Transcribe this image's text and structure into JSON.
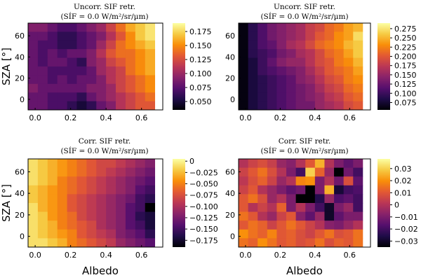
{
  "chart_data": [
    {
      "type": "heatmap",
      "title_line1": "Uncorr. SIF retr.",
      "title_line2": "(SÍF = 0.0 W/m²/sr/µm)",
      "xlabel": "",
      "ylabel": "SZA [°]",
      "x_ticks": [
        "0.0",
        "0.2",
        "0.4",
        "0.6"
      ],
      "y_ticks": [
        "0",
        "20",
        "40",
        "60"
      ],
      "xlim": [
        -0.04,
        0.72
      ],
      "ylim": [
        -10,
        72
      ],
      "colorbar_ticks": [
        "0.050",
        "0.075",
        "0.100",
        "0.125",
        "0.150",
        "0.175"
      ],
      "clim": [
        0.035,
        0.19
      ],
      "colormap": "inferno",
      "values": [
        [
          0.09,
          0.09,
          0.08,
          0.07,
          0.07,
          0.08,
          0.09,
          0.1,
          0.12,
          0.14,
          0.16,
          0.17,
          0.18
        ],
        [
          0.08,
          0.08,
          0.07,
          0.06,
          0.06,
          0.07,
          0.08,
          0.09,
          0.11,
          0.13,
          0.15,
          0.17,
          0.18
        ],
        [
          0.08,
          0.07,
          0.07,
          0.06,
          0.06,
          0.07,
          0.08,
          0.1,
          0.12,
          0.14,
          0.15,
          0.16,
          0.17
        ],
        [
          0.08,
          0.07,
          0.08,
          0.07,
          0.08,
          0.08,
          0.09,
          0.11,
          0.13,
          0.14,
          0.14,
          0.15,
          0.16
        ],
        [
          0.08,
          0.07,
          0.08,
          0.08,
          0.07,
          0.06,
          0.09,
          0.1,
          0.12,
          0.13,
          0.14,
          0.15,
          0.16
        ],
        [
          0.08,
          0.08,
          0.07,
          0.07,
          0.07,
          0.07,
          0.08,
          0.1,
          0.11,
          0.12,
          0.14,
          0.15,
          0.16
        ],
        [
          0.08,
          0.08,
          0.07,
          0.08,
          0.07,
          0.08,
          0.08,
          0.09,
          0.11,
          0.12,
          0.13,
          0.14,
          0.15
        ],
        [
          0.09,
          0.08,
          0.08,
          0.08,
          0.08,
          0.08,
          0.09,
          0.09,
          0.1,
          0.12,
          0.13,
          0.14,
          0.15
        ],
        [
          0.08,
          0.08,
          0.07,
          0.07,
          0.07,
          0.06,
          0.08,
          0.09,
          0.1,
          0.11,
          0.12,
          0.13,
          0.14
        ],
        [
          0.08,
          0.08,
          0.07,
          0.07,
          0.06,
          0.05,
          0.06,
          0.08,
          0.09,
          0.11,
          0.12,
          0.13,
          0.13
        ]
      ]
    },
    {
      "type": "heatmap",
      "title_line1": "Uncorr. SIF retr.",
      "title_line2": "(SÍF = 0.0 W/m²/sr/µm)",
      "xlabel": "",
      "ylabel": "",
      "x_ticks": [
        "0.0",
        "0.2",
        "0.4",
        "0.6"
      ],
      "y_ticks": [
        "0",
        "20",
        "40",
        "60"
      ],
      "xlim": [
        -0.04,
        0.72
      ],
      "ylim": [
        -10,
        72
      ],
      "colorbar_ticks": [
        "0.075",
        "0.100",
        "0.125",
        "0.150",
        "0.175",
        "0.200",
        "0.225",
        "0.250",
        "0.275"
      ],
      "clim": [
        0.055,
        0.29
      ],
      "colormap": "inferno",
      "values": [
        [
          0.06,
          0.09,
          0.11,
          0.13,
          0.14,
          0.15,
          0.16,
          0.18,
          0.19,
          0.21,
          0.22,
          0.24,
          0.25
        ],
        [
          0.06,
          0.09,
          0.11,
          0.13,
          0.14,
          0.15,
          0.16,
          0.18,
          0.2,
          0.21,
          0.23,
          0.24,
          0.27
        ],
        [
          0.06,
          0.09,
          0.11,
          0.12,
          0.14,
          0.16,
          0.17,
          0.19,
          0.21,
          0.22,
          0.23,
          0.25,
          0.26
        ],
        [
          0.06,
          0.09,
          0.1,
          0.11,
          0.13,
          0.14,
          0.16,
          0.17,
          0.19,
          0.21,
          0.22,
          0.24,
          0.26
        ],
        [
          0.06,
          0.08,
          0.1,
          0.12,
          0.14,
          0.15,
          0.15,
          0.17,
          0.19,
          0.2,
          0.22,
          0.23,
          0.25
        ],
        [
          0.06,
          0.08,
          0.1,
          0.11,
          0.12,
          0.13,
          0.14,
          0.16,
          0.18,
          0.2,
          0.21,
          0.22,
          0.24
        ],
        [
          0.06,
          0.08,
          0.09,
          0.1,
          0.11,
          0.12,
          0.14,
          0.15,
          0.17,
          0.19,
          0.2,
          0.22,
          0.23
        ],
        [
          0.06,
          0.08,
          0.09,
          0.1,
          0.11,
          0.12,
          0.13,
          0.14,
          0.16,
          0.18,
          0.19,
          0.21,
          0.22
        ],
        [
          0.06,
          0.08,
          0.09,
          0.1,
          0.11,
          0.12,
          0.13,
          0.14,
          0.15,
          0.17,
          0.18,
          0.2,
          0.21
        ],
        [
          0.06,
          0.08,
          0.09,
          0.1,
          0.11,
          0.12,
          0.13,
          0.13,
          0.15,
          0.16,
          0.17,
          0.19,
          0.2
        ]
      ]
    },
    {
      "type": "heatmap",
      "title_line1": "Corr. SIF retr.",
      "title_line2": "(SÍF = 0.0 W/m²/sr/µm)",
      "xlabel": "Albedo",
      "ylabel": "SZA [°]",
      "x_ticks": [
        "0.0",
        "0.2",
        "0.4",
        "0.6"
      ],
      "y_ticks": [
        "0",
        "20",
        "40",
        "60"
      ],
      "xlim": [
        -0.04,
        0.72
      ],
      "ylim": [
        -10,
        72
      ],
      "colorbar_ticks": [
        "0",
        "−0.025",
        "−0.050",
        "−0.075",
        "−0.100",
        "−0.125",
        "−0.150",
        "−0.175"
      ],
      "clim": [
        -0.19,
        0.005
      ],
      "colormap": "inferno",
      "values": [
        [
          -0.01,
          -0.02,
          -0.03,
          -0.04,
          -0.05,
          -0.06,
          -0.07,
          -0.08,
          -0.08,
          -0.09,
          -0.1,
          -0.11,
          -0.12
        ],
        [
          -0.01,
          -0.02,
          -0.03,
          -0.04,
          -0.05,
          -0.06,
          -0.07,
          -0.08,
          -0.09,
          -0.1,
          -0.11,
          -0.12,
          -0.13
        ],
        [
          -0.01,
          -0.02,
          -0.03,
          -0.05,
          -0.06,
          -0.07,
          -0.08,
          -0.09,
          -0.1,
          -0.11,
          -0.12,
          -0.13,
          -0.14
        ],
        [
          -0.02,
          -0.03,
          -0.04,
          -0.05,
          -0.06,
          -0.07,
          -0.08,
          -0.09,
          -0.1,
          -0.11,
          -0.12,
          -0.14,
          -0.15
        ],
        [
          -0.02,
          -0.03,
          -0.04,
          -0.05,
          -0.07,
          -0.08,
          -0.09,
          -0.1,
          -0.11,
          -0.12,
          -0.13,
          -0.15,
          -0.16
        ],
        [
          -0.01,
          -0.03,
          -0.04,
          -0.05,
          -0.07,
          -0.08,
          -0.09,
          -0.1,
          -0.11,
          -0.12,
          -0.14,
          -0.15,
          -0.19
        ],
        [
          -0.01,
          -0.02,
          -0.04,
          -0.05,
          -0.06,
          -0.08,
          -0.09,
          -0.1,
          -0.11,
          -0.12,
          -0.14,
          -0.16,
          -0.17
        ],
        [
          -0.01,
          -0.02,
          -0.03,
          -0.05,
          -0.06,
          -0.07,
          -0.08,
          -0.1,
          -0.11,
          -0.12,
          -0.14,
          -0.15,
          -0.17
        ],
        [
          -0.01,
          -0.02,
          -0.03,
          -0.04,
          -0.05,
          -0.07,
          -0.08,
          -0.09,
          -0.1,
          -0.12,
          -0.13,
          -0.14,
          -0.16
        ],
        [
          -0.01,
          -0.01,
          -0.02,
          -0.03,
          -0.05,
          -0.06,
          -0.07,
          -0.08,
          -0.09,
          -0.11,
          -0.12,
          -0.13,
          -0.14
        ]
      ]
    },
    {
      "type": "heatmap",
      "title_line1": "Corr. SIF retr.",
      "title_line2": "(SÍF = 0.0 W/m²/sr/µm)",
      "xlabel": "Albedo",
      "ylabel": "",
      "x_ticks": [
        "0.0",
        "0.2",
        "0.4",
        "0.6"
      ],
      "y_ticks": [
        "0",
        "20",
        "40",
        "60"
      ],
      "xlim": [
        -0.04,
        0.72
      ],
      "ylim": [
        -10,
        72
      ],
      "colorbar_ticks": [
        "0.03",
        "0.02",
        "0.01",
        "0",
        "−0.01",
        "−0.02",
        "−0.03"
      ],
      "clim": [
        -0.035,
        0.038
      ],
      "colormap": "inferno",
      "values": [
        [
          0.0,
          0.005,
          0.008,
          0.004,
          -0.005,
          -0.008,
          0.0,
          0.01,
          0.025,
          0.0,
          -0.01,
          -0.015,
          -0.01
        ],
        [
          0.005,
          0.01,
          0.015,
          0.008,
          0.0,
          -0.01,
          -0.02,
          0.03,
          0.012,
          -0.005,
          -0.035,
          -0.012,
          -0.02
        ],
        [
          0.002,
          0.008,
          0.012,
          0.005,
          -0.005,
          0.0,
          0.018,
          0.02,
          -0.01,
          0.0,
          -0.012,
          0.008,
          -0.015
        ],
        [
          0.005,
          0.01,
          0.0,
          -0.005,
          -0.01,
          -0.015,
          -0.012,
          -0.035,
          -0.01,
          0.025,
          -0.028,
          -0.02,
          -0.018
        ],
        [
          0.01,
          0.015,
          0.008,
          -0.005,
          0.0,
          -0.01,
          -0.035,
          -0.035,
          -0.025,
          -0.005,
          -0.018,
          -0.015,
          -0.02
        ],
        [
          0.01,
          0.0,
          0.005,
          0.0,
          0.012,
          -0.01,
          0.0,
          -0.01,
          -0.02,
          -0.03,
          -0.01,
          -0.005,
          -0.02
        ],
        [
          0.015,
          0.01,
          0.0,
          -0.005,
          0.005,
          0.01,
          -0.008,
          -0.015,
          -0.005,
          -0.03,
          -0.015,
          -0.01,
          -0.01
        ],
        [
          0.01,
          0.015,
          0.012,
          0.005,
          0.01,
          0.015,
          0.01,
          0.005,
          0.0,
          -0.008,
          -0.01,
          -0.005,
          0.0
        ],
        [
          0.02,
          0.015,
          0.012,
          0.018,
          0.01,
          0.012,
          0.008,
          0.005,
          0.01,
          0.015,
          0.008,
          0.01,
          0.015
        ],
        [
          0.015,
          0.012,
          0.02,
          0.015,
          0.01,
          0.012,
          0.008,
          0.01,
          0.015,
          0.008,
          0.012,
          0.01,
          0.015
        ]
      ]
    }
  ]
}
